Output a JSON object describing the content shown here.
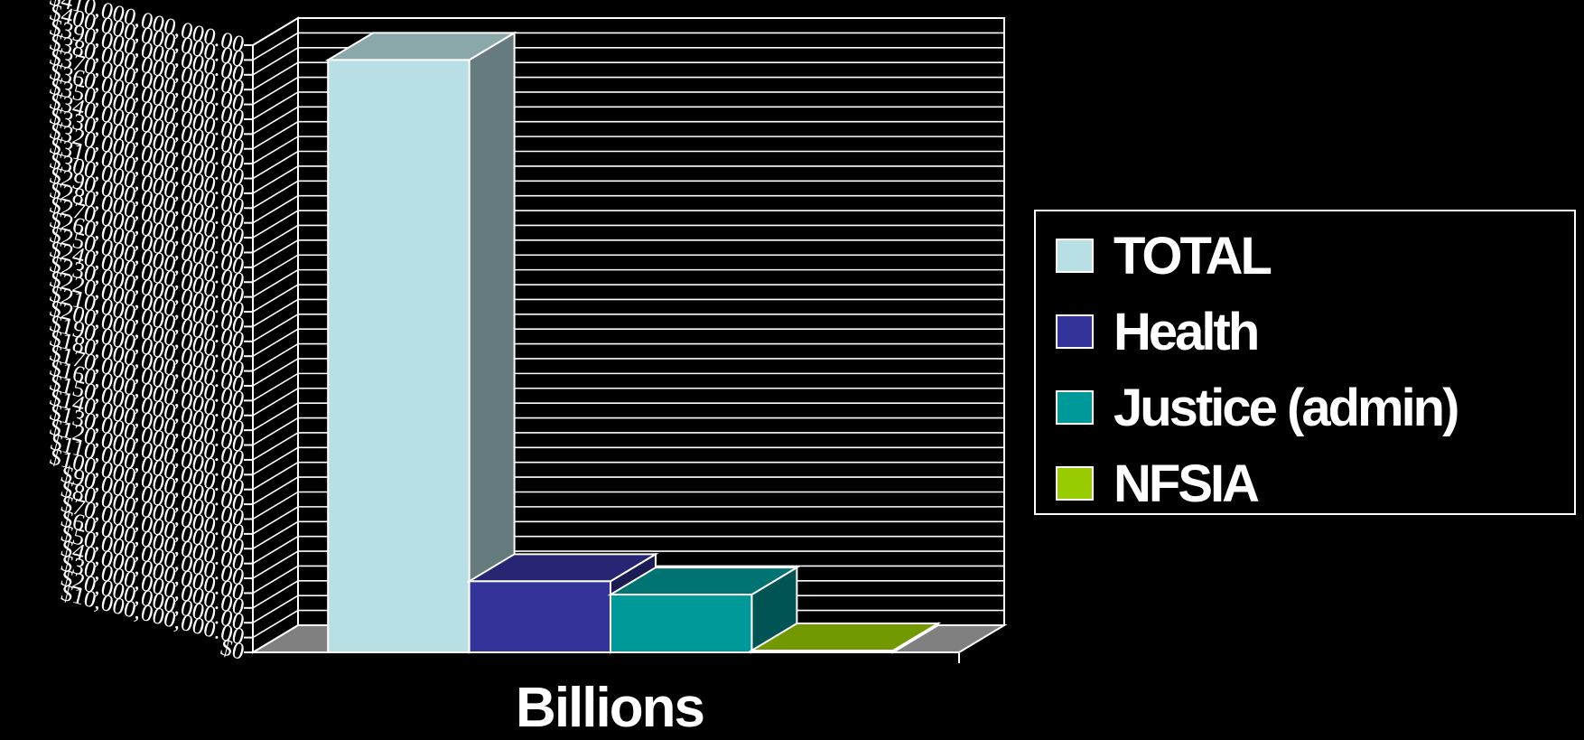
{
  "chart_data": {
    "type": "bar",
    "style": "3d",
    "categories": [
      ""
    ],
    "series": [
      {
        "name": "TOTAL",
        "values": [
          400000000000
        ],
        "color": "#b8dfe3"
      },
      {
        "name": "Health",
        "values": [
          48000000000
        ],
        "color": "#333399"
      },
      {
        "name": "Justice (admin)",
        "values": [
          39000000000
        ],
        "color": "#009999"
      },
      {
        "name": "NFSIA",
        "values": [
          0
        ],
        "color": "#99cc00"
      }
    ],
    "xlabel": "Billions",
    "ylabel": "",
    "ylim": [
      0,
      410000000000
    ],
    "ytick_step": 10000000000,
    "ytick_format": "currency",
    "grid": true,
    "legend": "right",
    "colors": {
      "background": "#000000",
      "axis": "#ffffff",
      "floor": "#808080"
    }
  }
}
